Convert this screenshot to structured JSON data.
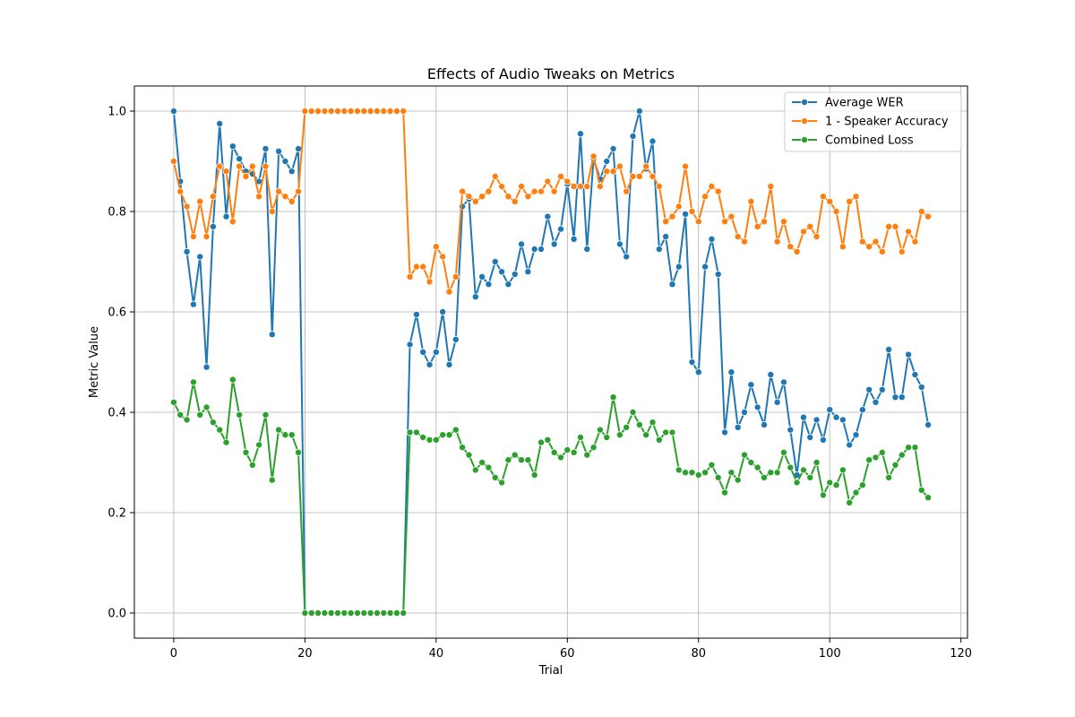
{
  "chart_data": {
    "type": "line",
    "title": "Effects of Audio Tweaks on Metrics",
    "xlabel": "Trial",
    "ylabel": "Metric Value",
    "xlim": [
      -6,
      121
    ],
    "ylim": [
      -0.05,
      1.05
    ],
    "xticks": [
      0,
      20,
      40,
      60,
      80,
      100,
      120
    ],
    "yticks": [
      0.0,
      0.2,
      0.4,
      0.6,
      0.8,
      1.0
    ],
    "xtick_labels": [
      "0",
      "20",
      "40",
      "60",
      "80",
      "100",
      "120"
    ],
    "ytick_labels": [
      "0.0",
      "0.2",
      "0.4",
      "0.6",
      "0.8",
      "1.0"
    ],
    "grid": true,
    "legend_position": "top-right",
    "series": [
      {
        "name": "Average WER",
        "color": "#1f77b4",
        "values": [
          1.0,
          0.86,
          0.72,
          0.615,
          0.71,
          0.49,
          0.77,
          0.975,
          0.79,
          0.93,
          0.905,
          0.88,
          0.875,
          0.86,
          0.925,
          0.555,
          0.92,
          0.9,
          0.88,
          0.925,
          0.0,
          0.0,
          0.0,
          0.0,
          0.0,
          0.0,
          0.0,
          0.0,
          0.0,
          0.0,
          0.0,
          0.0,
          0.0,
          0.0,
          0.0,
          0.0,
          0.535,
          0.595,
          0.52,
          0.495,
          0.52,
          0.6,
          0.495,
          0.545,
          0.81,
          0.825,
          0.63,
          0.67,
          0.655,
          0.7,
          0.68,
          0.655,
          0.675,
          0.735,
          0.68,
          0.725,
          0.725,
          0.79,
          0.735,
          0.765,
          0.855,
          0.745,
          0.955,
          0.725,
          0.905,
          0.865,
          0.9,
          0.925,
          0.735,
          0.71,
          0.95,
          1.0,
          0.885,
          0.94,
          0.725,
          0.75,
          0.655,
          0.69,
          0.795,
          0.5,
          0.48,
          0.69,
          0.745,
          0.675,
          0.36,
          0.48,
          0.37,
          0.4,
          0.455,
          0.41,
          0.375,
          0.475,
          0.42,
          0.46,
          0.365,
          0.275,
          0.39,
          0.35,
          0.385,
          0.345,
          0.405,
          0.39,
          0.385,
          0.335,
          0.355,
          0.405,
          0.445,
          0.42,
          0.445,
          0.525,
          0.43,
          0.43,
          0.515,
          0.475,
          0.45,
          0.375
        ]
      },
      {
        "name": "1 - Speaker Accuracy",
        "color": "#ff7f0e",
        "values": [
          0.9,
          0.84,
          0.81,
          0.75,
          0.82,
          0.75,
          0.83,
          0.89,
          0.88,
          0.78,
          0.89,
          0.87,
          0.89,
          0.83,
          0.89,
          0.8,
          0.84,
          0.83,
          0.82,
          0.84,
          1.0,
          1.0,
          1.0,
          1.0,
          1.0,
          1.0,
          1.0,
          1.0,
          1.0,
          1.0,
          1.0,
          1.0,
          1.0,
          1.0,
          1.0,
          1.0,
          0.67,
          0.69,
          0.69,
          0.66,
          0.73,
          0.71,
          0.64,
          0.67,
          0.84,
          0.83,
          0.82,
          0.83,
          0.84,
          0.87,
          0.85,
          0.83,
          0.82,
          0.85,
          0.83,
          0.84,
          0.84,
          0.86,
          0.84,
          0.87,
          0.86,
          0.85,
          0.85,
          0.85,
          0.91,
          0.85,
          0.88,
          0.88,
          0.89,
          0.84,
          0.87,
          0.87,
          0.89,
          0.87,
          0.85,
          0.78,
          0.79,
          0.81,
          0.89,
          0.8,
          0.78,
          0.83,
          0.85,
          0.84,
          0.78,
          0.79,
          0.75,
          0.74,
          0.82,
          0.77,
          0.78,
          0.85,
          0.74,
          0.78,
          0.73,
          0.72,
          0.76,
          0.77,
          0.75,
          0.83,
          0.82,
          0.8,
          0.73,
          0.82,
          0.83,
          0.74,
          0.73,
          0.74,
          0.72,
          0.77,
          0.77,
          0.72,
          0.76,
          0.74,
          0.8,
          0.79
        ]
      },
      {
        "name": "Combined Loss",
        "color": "#2ca02c",
        "values": [
          0.42,
          0.395,
          0.385,
          0.46,
          0.395,
          0.41,
          0.38,
          0.365,
          0.34,
          0.465,
          0.395,
          0.32,
          0.295,
          0.335,
          0.395,
          0.265,
          0.365,
          0.355,
          0.355,
          0.32,
          0.0,
          0.0,
          0.0,
          0.0,
          0.0,
          0.0,
          0.0,
          0.0,
          0.0,
          0.0,
          0.0,
          0.0,
          0.0,
          0.0,
          0.0,
          0.0,
          0.36,
          0.36,
          0.35,
          0.345,
          0.345,
          0.355,
          0.355,
          0.365,
          0.33,
          0.315,
          0.285,
          0.3,
          0.29,
          0.27,
          0.26,
          0.305,
          0.315,
          0.305,
          0.305,
          0.275,
          0.34,
          0.345,
          0.32,
          0.31,
          0.325,
          0.32,
          0.35,
          0.315,
          0.33,
          0.365,
          0.35,
          0.43,
          0.355,
          0.37,
          0.4,
          0.375,
          0.355,
          0.38,
          0.345,
          0.36,
          0.36,
          0.285,
          0.28,
          0.28,
          0.275,
          0.28,
          0.295,
          0.27,
          0.24,
          0.28,
          0.265,
          0.315,
          0.3,
          0.29,
          0.27,
          0.28,
          0.28,
          0.32,
          0.29,
          0.26,
          0.285,
          0.27,
          0.3,
          0.235,
          0.26,
          0.255,
          0.285,
          0.22,
          0.24,
          0.255,
          0.305,
          0.31,
          0.32,
          0.27,
          0.295,
          0.315,
          0.33,
          0.33,
          0.245,
          0.23
        ]
      }
    ]
  }
}
